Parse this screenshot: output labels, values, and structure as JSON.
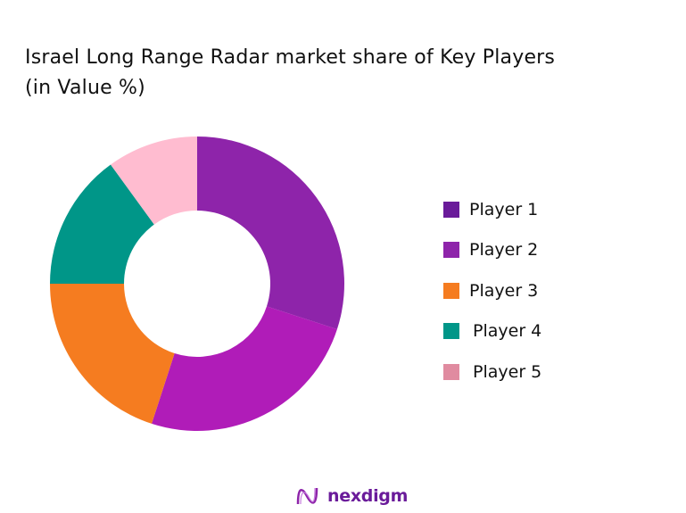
{
  "chart_data": {
    "type": "pie",
    "variant": "donut",
    "title": "Israel Long Range Radar market share of Key Players (in Value %)",
    "title_lines": [
      "Israel Long Range Radar market share of Key Players",
      "(in Value %)"
    ],
    "categories": [
      "Player 1",
      "Player 2",
      "Player 3",
      "Player 4",
      "Player 5"
    ],
    "values": [
      30,
      25,
      20,
      15,
      10
    ],
    "slice_colors": [
      "#8e24aa",
      "#b01cb8",
      "#f57c20",
      "#009688",
      "#ffbcd0"
    ],
    "legend_colors": [
      "#6a1b9a",
      "#8e24aa",
      "#f57c20",
      "#009688",
      "#e08ba0"
    ],
    "legend_position": "right"
  },
  "branding": {
    "logo_text": "nexdigm"
  }
}
